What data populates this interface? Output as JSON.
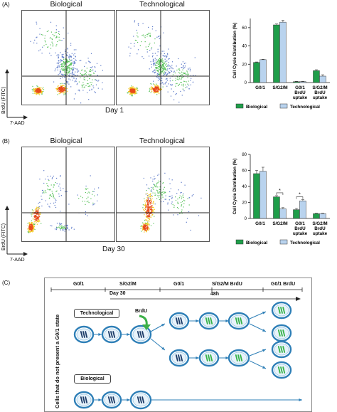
{
  "panel_a": {
    "letter": "(A)",
    "plot_left_title": "Biological",
    "plot_right_title": "Technological",
    "day": "Day 1",
    "y_axis": "BrdU (FITC)",
    "x_axis": "7-AAD"
  },
  "panel_b": {
    "letter": "(B)",
    "plot_left_title": "Biological",
    "plot_right_title": "Technological",
    "day": "Day 30",
    "y_axis": "BrdU (FITC)",
    "x_axis": "7-AAD"
  },
  "chart_data": [
    {
      "type": "bar",
      "ylabel": "Cell Cycle Distribution (%)",
      "ylim": [
        0,
        70
      ],
      "yticks": [
        "0",
        "20",
        "40",
        "60"
      ],
      "categories": [
        "G0/1",
        "S/G2/M",
        "G0/1 BrdU uptake",
        "S/G2/M BrdU uptake"
      ],
      "series": [
        {
          "name": "Biological",
          "color": "#1f9e4a",
          "values": [
            22,
            63,
            1,
            13
          ]
        },
        {
          "name": "Technological",
          "color": "#b9d3ee",
          "values": [
            25,
            66,
            1,
            7
          ]
        }
      ],
      "errors": [
        [
          0.5,
          1,
          0.3,
          1
        ],
        [
          0.5,
          2,
          0.3,
          1.5
        ]
      ],
      "legend": "bottom"
    },
    {
      "type": "bar",
      "ylabel": "Cell Cycle Distribution (%)",
      "ylim": [
        0,
        80
      ],
      "yticks": [
        "0",
        "20",
        "40",
        "60",
        "80"
      ],
      "categories": [
        "G0/1",
        "S/G2/M",
        "G0/1 BrdU uptake",
        "S/G2/M BrdU uptake"
      ],
      "series": [
        {
          "name": "Biological",
          "color": "#1f9e4a",
          "values": [
            56,
            27,
            11,
            6
          ]
        },
        {
          "name": "Technological",
          "color": "#b9d3ee",
          "values": [
            59,
            12,
            22,
            6
          ]
        }
      ],
      "errors": [
        [
          4,
          1.5,
          1.5,
          0.5
        ],
        [
          5,
          1.5,
          1.5,
          0.5
        ]
      ],
      "significance": [
        "*",
        "*"
      ],
      "legend": "bottom"
    }
  ],
  "panel_c": {
    "letter": "(C)",
    "phases": [
      "G0/1",
      "S/G2/M",
      "G0/1",
      "S/G2/M BrdU",
      "G0/1 BrdU"
    ],
    "day": "Day 30",
    "duration": "48h",
    "brdu_label": "BrdU",
    "technological": "Technological",
    "biological": "Biological",
    "side_label": "Cells that do not present a G0/1 state"
  }
}
